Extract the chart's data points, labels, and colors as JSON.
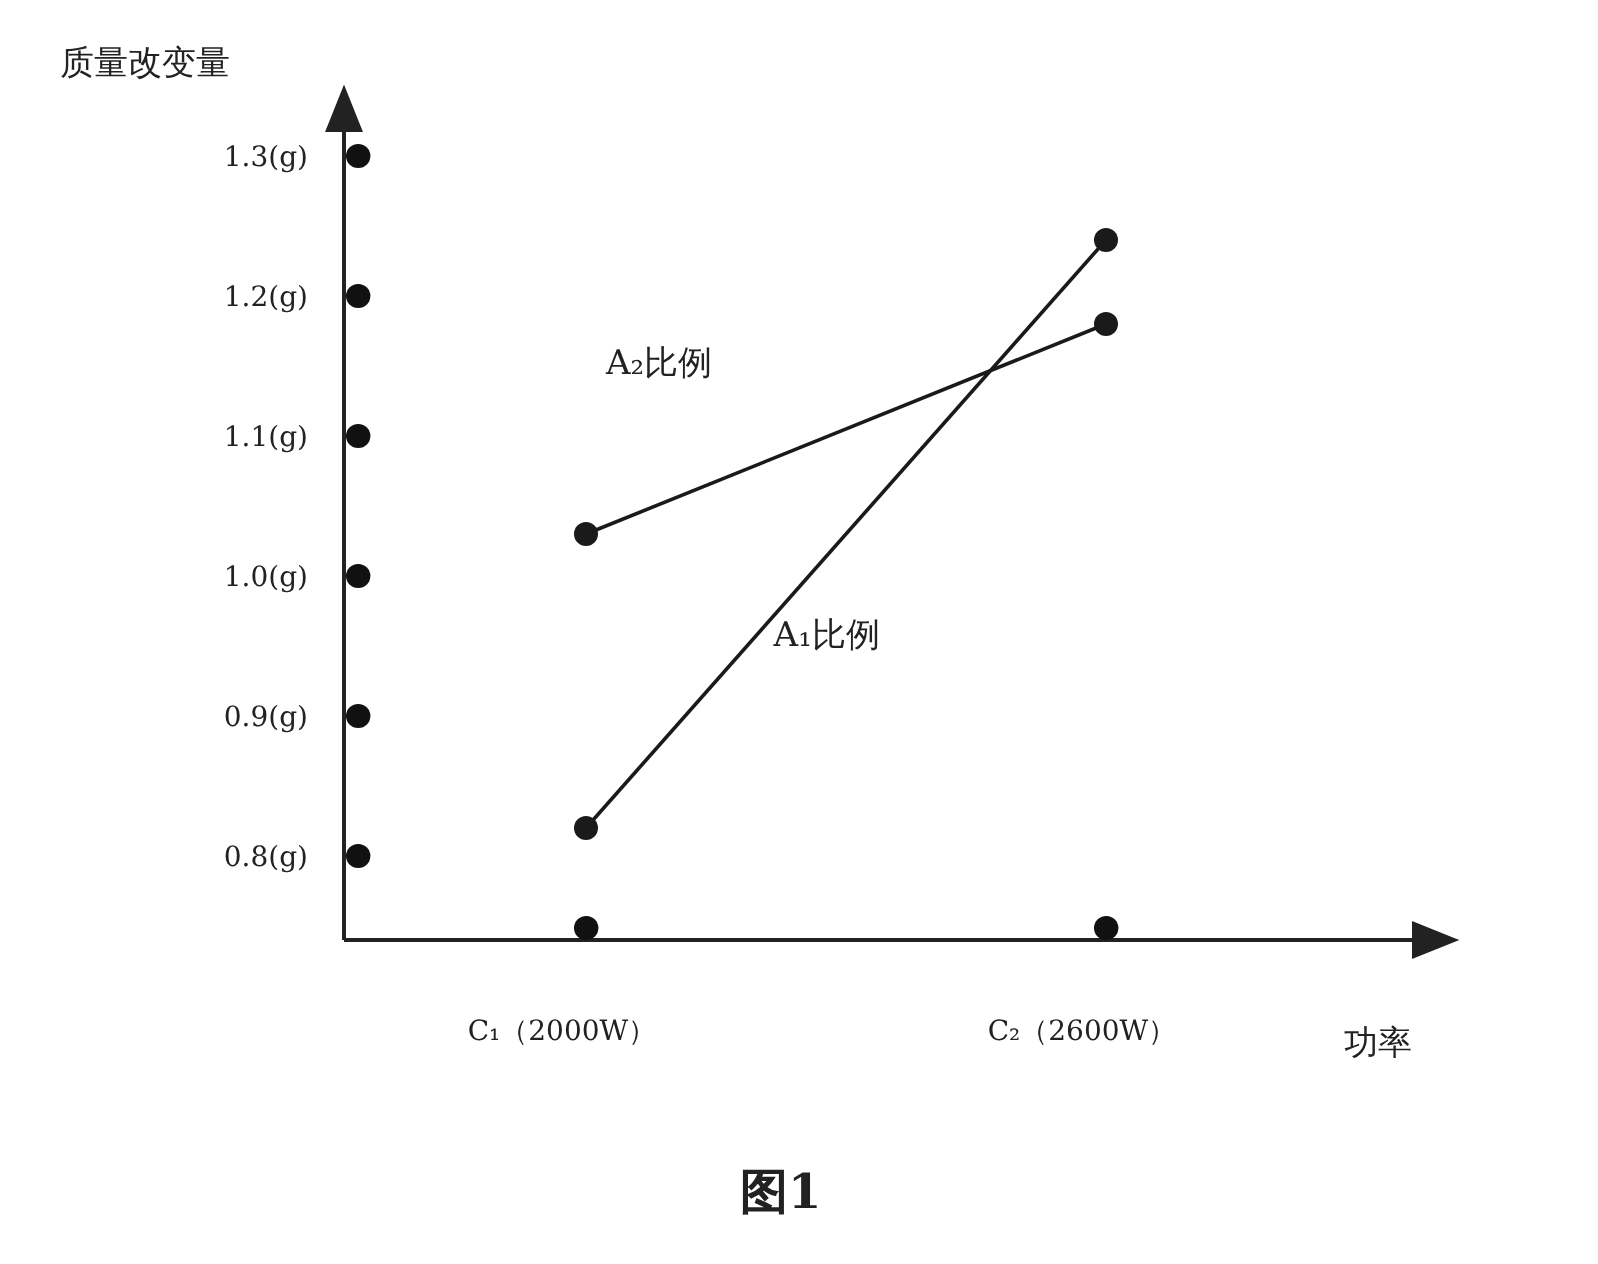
{
  "chart_data": {
    "type": "line",
    "title": "图1",
    "xlabel": "功率",
    "ylabel": "质量改变量",
    "categories": [
      "C₁（2000W）",
      "C₂（2600W）"
    ],
    "series": [
      {
        "name": "A₂比例",
        "color": "#1a1a1a",
        "values": [
          1.03,
          1.18
        ]
      },
      {
        "name": "A₁比例",
        "color": "#1a1a1a",
        "values": [
          0.82,
          1.24
        ]
      }
    ],
    "ylim": [
      0.74,
      1.33
    ],
    "yticks": [
      {
        "value": 0.8,
        "label": "0.8(g)"
      },
      {
        "value": 0.9,
        "label": "0.9(g)"
      },
      {
        "value": 1.0,
        "label": "1.0(g)"
      },
      {
        "value": 1.1,
        "label": "1.1(g)"
      },
      {
        "value": 1.2,
        "label": "1.2(g)"
      },
      {
        "value": 1.3,
        "label": "1.3(g)"
      }
    ],
    "grid": false,
    "marker": "circle",
    "line_style": "solid"
  }
}
